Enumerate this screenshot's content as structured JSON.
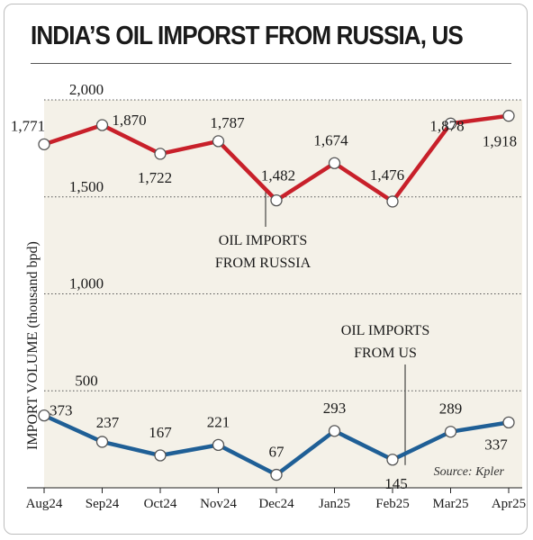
{
  "title": "INDIA’S OIL IMPORST FROM RUSSIA, US",
  "source": "Source: Kpler",
  "chart_data": {
    "type": "line",
    "title": "INDIA’S OIL IMPORST FROM RUSSIA, US",
    "ylabel": "IMPORT VOLUME (thousand bpd)",
    "xlabel": "",
    "categories": [
      "Aug24",
      "Sep24",
      "Oct24",
      "Nov24",
      "Dec24",
      "Jan25",
      "Feb25",
      "Mar25",
      "Apr25"
    ],
    "ylim": [
      0,
      2000
    ],
    "yticks": [
      "500",
      "1,000",
      "1,500",
      "2,000"
    ],
    "series": [
      {
        "name": "OIL IMPORTS FROM RUSSIA",
        "color": "#c8202a",
        "values": [
          1771,
          1870,
          1722,
          1787,
          1482,
          1674,
          1476,
          1878,
          1918
        ],
        "labels": [
          "1,771",
          "1,870",
          "1,722",
          "1,787",
          "1,482",
          "1,674",
          "1,476",
          "1,878",
          "1,918"
        ]
      },
      {
        "name": "OIL IMPORTS FROM US",
        "color": "#1f5f96",
        "values": [
          373,
          237,
          167,
          221,
          67,
          293,
          145,
          289,
          337
        ],
        "labels": [
          "373",
          "237",
          "167",
          "221",
          "67",
          "293",
          "145",
          "289",
          "337"
        ]
      }
    ],
    "annotations": [
      {
        "lines": [
          "OIL IMPORTS",
          "FROM RUSSIA"
        ]
      },
      {
        "lines": [
          "OIL IMPORTS",
          "FROM US"
        ]
      }
    ],
    "grid": true,
    "legend": "none"
  }
}
